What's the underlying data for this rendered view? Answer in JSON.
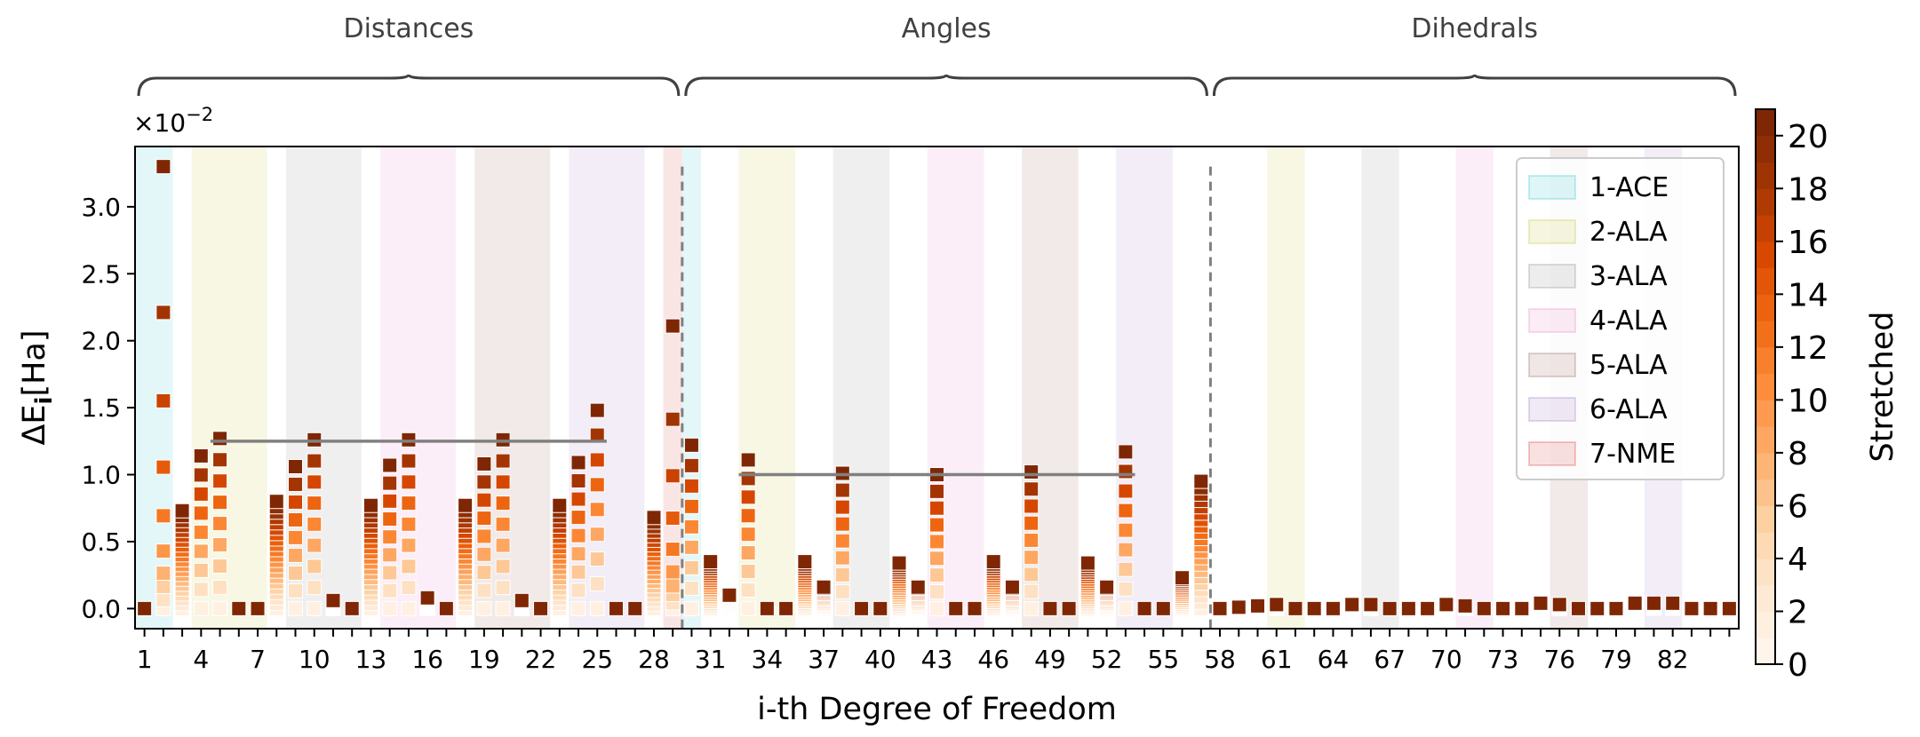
{
  "chart_data": {
    "type": "scatter",
    "xlabel": "i-th Degree of Freedom",
    "ylabel": "ΔE",
    "ylabel_sub": "i",
    "ylabel_unit": "[Ha]",
    "y_multiplier_base": "×10",
    "y_multiplier_exp": "−2",
    "ylim": [
      -0.15,
      3.45
    ],
    "xlim": [
      0.5,
      85.5
    ],
    "yticks": [
      0.0,
      0.5,
      1.0,
      1.5,
      2.0,
      2.5,
      3.0
    ],
    "ytick_labels": [
      "0.0",
      "0.5",
      "1.0",
      "1.5",
      "2.0",
      "2.5",
      "3.0"
    ],
    "xticks": [
      1,
      4,
      7,
      10,
      13,
      16,
      19,
      22,
      25,
      28,
      31,
      34,
      37,
      40,
      43,
      46,
      49,
      52,
      55,
      58,
      61,
      64,
      67,
      70,
      73,
      76,
      79,
      82
    ],
    "xtick_labels": [
      "1",
      "4",
      "7",
      "10",
      "13",
      "16",
      "19",
      "22",
      "25",
      "28",
      "31",
      "34",
      "37",
      "40",
      "43",
      "46",
      "49",
      "52",
      "55",
      "58",
      "61",
      "64",
      "67",
      "70",
      "73",
      "76",
      "79",
      "82"
    ],
    "sections": [
      {
        "label": "Distances",
        "x_start": 0.5,
        "x_end": 29.5
      },
      {
        "label": "Angles",
        "x_start": 29.5,
        "x_end": 57.5
      },
      {
        "label": "Dihedrals",
        "x_start": 57.5,
        "x_end": 85.5
      }
    ],
    "section_dividers": [
      29.5,
      57.5
    ],
    "divider_top": 3.3,
    "mean_lines": [
      {
        "x_start": 4.5,
        "x_end": 25.5,
        "y": 1.25
      },
      {
        "x_start": 32.5,
        "x_end": 53.5,
        "y": 1.0
      }
    ],
    "residues": [
      {
        "name": "1-ACE",
        "color": "#17becf"
      },
      {
        "name": "2-ALA",
        "color": "#bcbd22"
      },
      {
        "name": "3-ALA",
        "color": "#7f7f7f"
      },
      {
        "name": "4-ALA",
        "color": "#e377c2"
      },
      {
        "name": "5-ALA",
        "color": "#8c564b"
      },
      {
        "name": "6-ALA",
        "color": "#9467bd"
      },
      {
        "name": "7-NME",
        "color": "#d62728"
      }
    ],
    "residue_bands": [
      {
        "residue": 0,
        "x_start": 0.5,
        "x_end": 2.5
      },
      {
        "residue": 1,
        "x_start": 3.5,
        "x_end": 7.5
      },
      {
        "residue": 2,
        "x_start": 8.5,
        "x_end": 12.5
      },
      {
        "residue": 3,
        "x_start": 13.5,
        "x_end": 17.5
      },
      {
        "residue": 4,
        "x_start": 18.5,
        "x_end": 22.5
      },
      {
        "residue": 5,
        "x_start": 23.5,
        "x_end": 27.5
      },
      {
        "residue": 6,
        "x_start": 28.5,
        "x_end": 29.5
      },
      {
        "residue": 0,
        "x_start": 29.5,
        "x_end": 30.5
      },
      {
        "residue": 1,
        "x_start": 32.5,
        "x_end": 35.5
      },
      {
        "residue": 2,
        "x_start": 37.5,
        "x_end": 40.5
      },
      {
        "residue": 3,
        "x_start": 42.5,
        "x_end": 45.5
      },
      {
        "residue": 4,
        "x_start": 47.5,
        "x_end": 50.5
      },
      {
        "residue": 5,
        "x_start": 52.5,
        "x_end": 55.5
      },
      {
        "residue": 1,
        "x_start": 60.5,
        "x_end": 62.5
      },
      {
        "residue": 2,
        "x_start": 65.5,
        "x_end": 67.5
      },
      {
        "residue": 3,
        "x_start": 70.5,
        "x_end": 72.5
      },
      {
        "residue": 4,
        "x_start": 75.5,
        "x_end": 77.5
      },
      {
        "residue": 5,
        "x_start": 80.5,
        "x_end": 82.5
      }
    ],
    "legend_position": "top-right",
    "colorbar": {
      "label": "Stretched",
      "min": 0,
      "max": 21,
      "ticks": [
        0,
        2,
        4,
        6,
        8,
        10,
        12,
        14,
        16,
        18,
        20
      ],
      "tick_labels": [
        "0",
        "2",
        "4",
        "6",
        "8",
        "10",
        "12",
        "14",
        "16",
        "18",
        "20"
      ],
      "colormap": "Oranges"
    },
    "dof_max_values": [
      0.0,
      3.3,
      0.73,
      1.14,
      1.27,
      0.0,
      0.0,
      0.8,
      1.06,
      1.26,
      0.06,
      0.0,
      0.77,
      1.07,
      1.26,
      0.08,
      0.0,
      0.77,
      1.08,
      1.26,
      0.06,
      0.0,
      0.77,
      1.09,
      1.48,
      0.0,
      0.0,
      0.68,
      2.11,
      1.22,
      0.35,
      0.1,
      1.11,
      0.0,
      0.0,
      0.35,
      0.16,
      1.01,
      0.0,
      0.0,
      0.34,
      0.16,
      1.0,
      0.0,
      0.0,
      0.35,
      0.16,
      1.02,
      0.0,
      0.0,
      0.34,
      0.16,
      1.17,
      0.0,
      0.0,
      0.23,
      0.95,
      0.0,
      0.01,
      0.02,
      0.03,
      0.0,
      0.0,
      0.0,
      0.03,
      0.03,
      0.0,
      0.0,
      0.0,
      0.03,
      0.02,
      0.0,
      0.0,
      0.0,
      0.04,
      0.03,
      0.0,
      0.0,
      0.0,
      0.04,
      0.04,
      0.04,
      0.0,
      0.0,
      0.0
    ],
    "dof_styles": [
      "z",
      "spike",
      "dense",
      "disc",
      "disc",
      "z",
      "z",
      "dense",
      "disc",
      "disc",
      "dense",
      "z",
      "dense",
      "disc",
      "disc",
      "dense",
      "z",
      "dense",
      "disc",
      "disc",
      "dense",
      "z",
      "dense",
      "disc",
      "disc",
      "z",
      "z",
      "dense",
      "spike",
      "disc",
      "dense",
      "dense",
      "disc",
      "z",
      "z",
      "dense",
      "dense",
      "disc",
      "z",
      "z",
      "dense",
      "dense",
      "disc",
      "z",
      "z",
      "dense",
      "dense",
      "disc",
      "z",
      "z",
      "dense",
      "dense",
      "disc",
      "z",
      "z",
      "dense",
      "dense",
      "z",
      "dense",
      "dense",
      "dense",
      "z",
      "z",
      "z",
      "dense",
      "dense",
      "z",
      "z",
      "z",
      "dense",
      "dense",
      "z",
      "z",
      "z",
      "dense",
      "dense",
      "z",
      "z",
      "z",
      "dense",
      "dense",
      "dense",
      "z",
      "z",
      "z"
    ]
  }
}
